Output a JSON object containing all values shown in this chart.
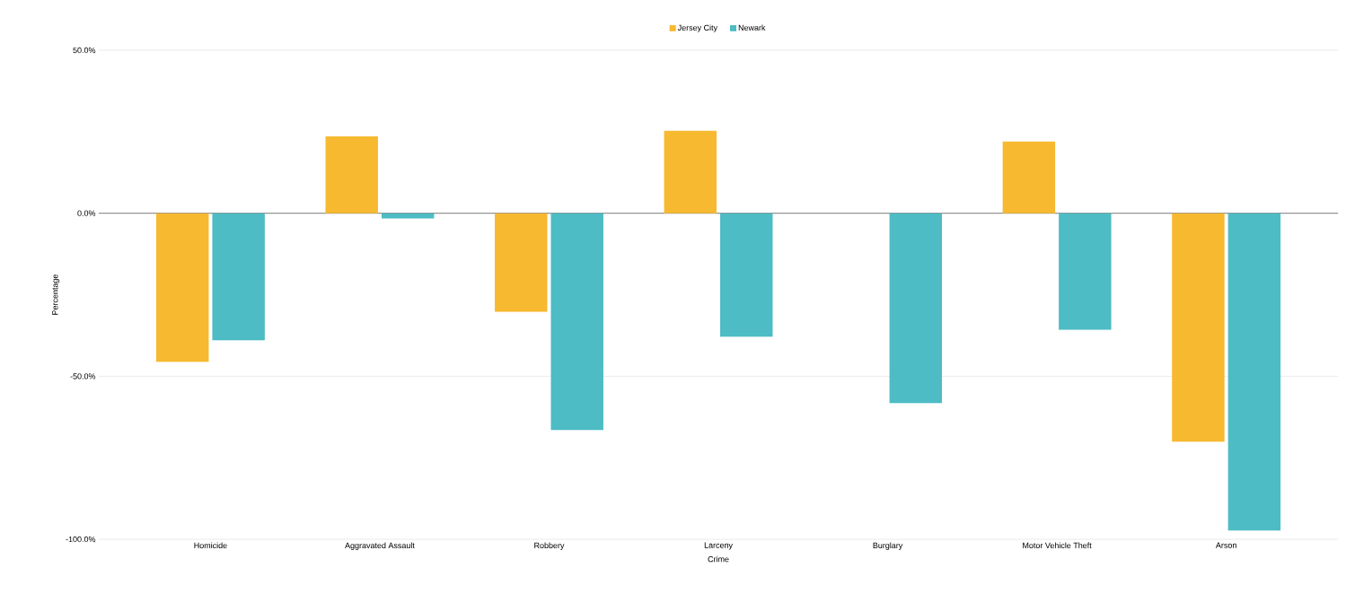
{
  "chart_data": {
    "type": "bar",
    "xlabel": "Crime",
    "ylabel": "Percentage",
    "categories": [
      "Homicide",
      "Aggravated Assault",
      "Robbery",
      "Larceny",
      "Burglary",
      "Motor Vehicle Theft",
      "Arson"
    ],
    "series": [
      {
        "name": "Jersey City",
        "color": "#f7b92f",
        "values": [
          -45.6,
          23.6,
          -30.2,
          25.3,
          0,
          22.0,
          -70.1
        ]
      },
      {
        "name": "Newark",
        "color": "#4dbcc4",
        "values": [
          -39.0,
          -1.6,
          -66.5,
          -37.9,
          -58.2,
          -35.7,
          -97.3
        ]
      }
    ],
    "ylim": [
      -100,
      50
    ],
    "yticks": [
      {
        "value": -100,
        "label": "-100.0%"
      },
      {
        "value": -50,
        "label": "-50.0%"
      },
      {
        "value": 0,
        "label": "0.0%"
      },
      {
        "value": 50,
        "label": "50.0%"
      }
    ],
    "grid": "y",
    "legend": "top"
  }
}
